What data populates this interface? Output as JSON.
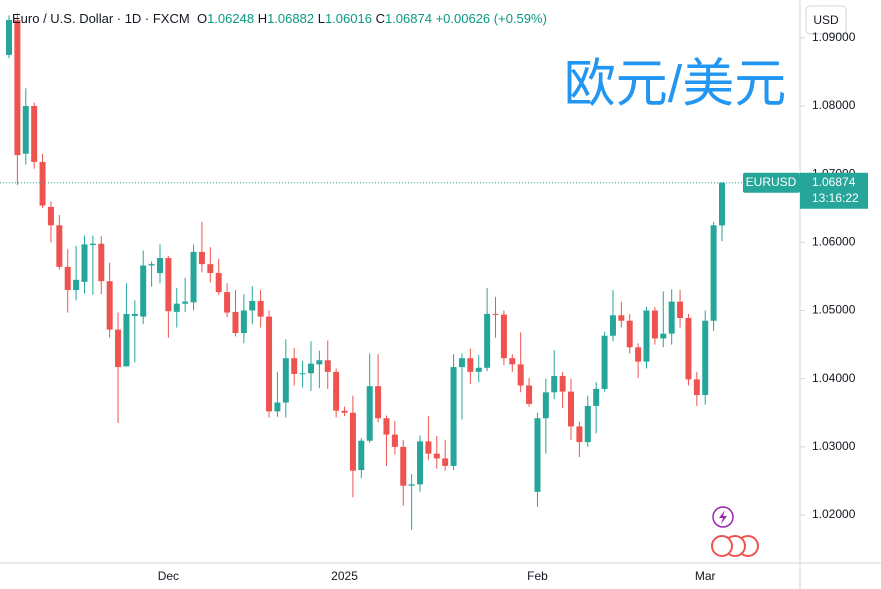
{
  "header": {
    "symbol": "Euro / U.S. Dollar · 1D · FXCM",
    "o_label": "O",
    "h_label": "H",
    "l_label": "L",
    "c_label": "C",
    "change": "+0.00626",
    "change_pct": "(+0.59%)"
  },
  "currency": "USD",
  "watermark": "欧元/美元",
  "price_tag": {
    "symbol": "EURUSD",
    "countdown": "13:16:22"
  },
  "chart_data": {
    "type": "candlestick",
    "categories": [
      null,
      null,
      null,
      null,
      null,
      null,
      null,
      null,
      null,
      null,
      null,
      null,
      null,
      null,
      null,
      null,
      null,
      null,
      null,
      "Dec",
      null,
      null,
      null,
      null,
      null,
      null,
      null,
      null,
      null,
      null,
      null,
      null,
      null,
      null,
      null,
      null,
      null,
      null,
      null,
      null,
      "2025",
      null,
      null,
      null,
      null,
      null,
      null,
      null,
      null,
      null,
      null,
      null,
      null,
      null,
      null,
      null,
      null,
      null,
      null,
      null,
      null,
      null,
      null,
      "Feb",
      null,
      null,
      null,
      null,
      null,
      null,
      null,
      null,
      null,
      null,
      null,
      null,
      null,
      null,
      null,
      null,
      null,
      null,
      null,
      "Mar",
      null,
      null
    ],
    "open": [
      1.0875,
      1.0926,
      1.073,
      1.08,
      1.0718,
      1.0652,
      1.0625,
      1.0564,
      1.053,
      1.0542,
      1.0596,
      1.0598,
      1.0543,
      1.0472,
      1.0418,
      1.0492,
      1.0491,
      1.0566,
      1.0555,
      1.0577,
      1.0498,
      1.051,
      1.0512,
      1.0586,
      1.0568,
      1.0555,
      1.0527,
      1.0498,
      1.0467,
      1.05,
      1.0514,
      1.0491,
      1.0352,
      1.0365,
      1.043,
      1.0407,
      1.0408,
      1.0421,
      1.0427,
      1.041,
      1.0353,
      1.035,
      1.0266,
      1.0309,
      1.0389,
      1.0342,
      1.0318,
      1.03,
      1.0243,
      1.0245,
      1.0308,
      1.029,
      1.0283,
      1.0272,
      1.0417,
      1.043,
      1.041,
      1.0416,
      1.0495,
      1.0494,
      1.043,
      1.0421,
      1.039,
      1.0234,
      1.0342,
      1.038,
      1.0404,
      1.0381,
      1.033,
      1.0307,
      1.036,
      1.0385,
      1.0463,
      1.0493,
      1.0485,
      1.0446,
      1.0425,
      1.05,
      1.0459,
      1.0466,
      1.0513,
      1.0489,
      1.0399,
      1.0376,
      1.0485,
      1.06248
    ],
    "high": [
      1.0933,
      1.0936,
      1.0826,
      1.0805,
      1.073,
      1.066,
      1.064,
      1.059,
      1.0595,
      1.061,
      1.061,
      1.0609,
      1.057,
      1.0497,
      1.054,
      1.0515,
      1.0588,
      1.0572,
      1.0597,
      1.058,
      1.0533,
      1.0548,
      1.0597,
      1.063,
      1.0593,
      1.0576,
      1.054,
      1.053,
      1.0524,
      1.0536,
      1.053,
      1.05,
      1.041,
      1.0458,
      1.0445,
      1.0426,
      1.0455,
      1.0441,
      1.0456,
      1.0415,
      1.0359,
      1.0375,
      1.0313,
      1.0437,
      1.0436,
      1.0346,
      1.0338,
      1.031,
      1.026,
      1.0317,
      1.0345,
      1.0316,
      1.031,
      1.0436,
      1.0437,
      1.0444,
      1.0435,
      1.0533,
      1.052,
      1.05,
      1.0436,
      1.0468,
      1.0401,
      1.035,
      1.04,
      1.0442,
      1.041,
      1.04,
      1.0337,
      1.0375,
      1.0395,
      1.0469,
      1.053,
      1.0513,
      1.0495,
      1.0452,
      1.0505,
      1.0505,
      1.0528,
      1.0531,
      1.053,
      1.0495,
      1.041,
      1.05,
      1.063,
      1.06882
    ],
    "low": [
      1.087,
      1.0684,
      1.0714,
      1.0708,
      1.065,
      1.06,
      1.056,
      1.0497,
      1.0515,
      1.0525,
      1.0523,
      1.0524,
      1.046,
      1.0335,
      1.042,
      1.0424,
      1.048,
      1.0535,
      1.054,
      1.046,
      1.0475,
      1.0498,
      1.05,
      1.0556,
      1.0541,
      1.0523,
      1.049,
      1.0462,
      1.0452,
      1.048,
      1.0475,
      1.0343,
      1.0344,
      1.0343,
      1.039,
      1.0387,
      1.0382,
      1.0386,
      1.0385,
      1.0343,
      1.0345,
      1.0226,
      1.0254,
      1.0306,
      1.0336,
      1.0272,
      1.0289,
      1.0214,
      1.0178,
      1.0234,
      1.0281,
      1.0268,
      1.0265,
      1.0266,
      1.034,
      1.0392,
      1.0395,
      1.0411,
      1.046,
      1.042,
      1.041,
      1.038,
      1.0359,
      1.0212,
      1.029,
      1.037,
      1.0357,
      1.031,
      1.0285,
      1.03,
      1.032,
      1.0381,
      1.0455,
      1.0475,
      1.0437,
      1.0401,
      1.0415,
      1.045,
      1.0446,
      1.045,
      1.0475,
      1.039,
      1.036,
      1.0362,
      1.047,
      1.06016
    ],
    "close": [
      1.0926,
      1.0728,
      1.08,
      1.0718,
      1.0654,
      1.0625,
      1.0564,
      1.053,
      1.0545,
      1.0597,
      1.0598,
      1.0543,
      1.0472,
      1.0417,
      1.0495,
      1.0495,
      1.0566,
      1.0568,
      1.0577,
      1.0499,
      1.051,
      1.0513,
      1.0586,
      1.0568,
      1.0555,
      1.0527,
      1.0497,
      1.0467,
      1.05,
      1.0514,
      1.0491,
      1.0352,
      1.0365,
      1.043,
      1.0407,
      1.0408,
      1.0422,
      1.0427,
      1.041,
      1.0353,
      1.035,
      1.0265,
      1.0309,
      1.0389,
      1.0342,
      1.0318,
      1.03,
      1.0243,
      1.0245,
      1.0308,
      1.029,
      1.0283,
      1.0272,
      1.0417,
      1.043,
      1.041,
      1.0416,
      1.0495,
      1.0494,
      1.043,
      1.0421,
      1.039,
      1.0363,
      1.0342,
      1.038,
      1.0404,
      1.0381,
      1.033,
      1.0307,
      1.036,
      1.0385,
      1.0463,
      1.0493,
      1.0485,
      1.0446,
      1.0425,
      1.05,
      1.0459,
      1.0466,
      1.0513,
      1.0489,
      1.0399,
      1.0376,
      1.0485,
      1.0625,
      1.06874
    ],
    "up_color": "#26a69a",
    "down_color": "#ef5350",
    "ylim": [
      1.01296,
      1.09555
    ],
    "yticks": [
      {
        "value": 1.02,
        "label": "1.02000"
      },
      {
        "value": 1.03,
        "label": "1.03000"
      },
      {
        "value": 1.04,
        "label": "1.04000"
      },
      {
        "value": 1.05,
        "label": "1.05000"
      },
      {
        "value": 1.06,
        "label": "1.06000"
      },
      {
        "value": 1.07,
        "label": "1.07000"
      },
      {
        "value": 1.08,
        "label": "1.08000"
      },
      {
        "value": 1.09,
        "label": "1.09000"
      }
    ],
    "grid": false
  }
}
